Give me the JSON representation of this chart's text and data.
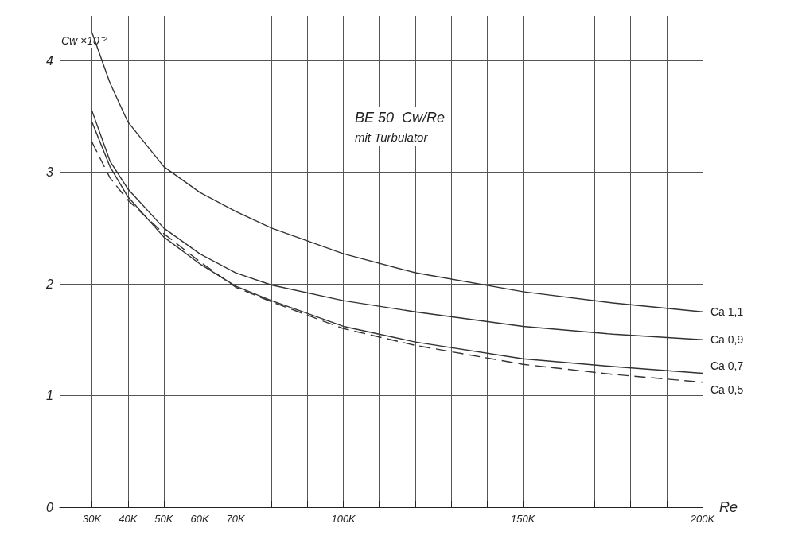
{
  "chart_data": {
    "type": "line",
    "title": "BE 50  Cw/Re",
    "subtitle": "mit Turbulator",
    "xlabel": "Re",
    "ylabel": "Cw ×10⁻²",
    "xlim": [
      21000,
      200000
    ],
    "xticks": [
      {
        "value": 30000,
        "label": "30K"
      },
      {
        "value": 40000,
        "label": "40K"
      },
      {
        "value": 50000,
        "label": "50K"
      },
      {
        "value": 60000,
        "label": "60K"
      },
      {
        "value": 70000,
        "label": "70K"
      },
      {
        "value": 80000,
        "label": null
      },
      {
        "value": 90000,
        "label": null
      },
      {
        "value": 100000,
        "label": "100K"
      },
      {
        "value": 110000,
        "label": null
      },
      {
        "value": 120000,
        "label": null
      },
      {
        "value": 130000,
        "label": null
      },
      {
        "value": 140000,
        "label": null
      },
      {
        "value": 150000,
        "label": "150K"
      },
      {
        "value": 160000,
        "label": null
      },
      {
        "value": 170000,
        "label": null
      },
      {
        "value": 180000,
        "label": null
      },
      {
        "value": 190000,
        "label": null
      },
      {
        "value": 200000,
        "label": "200K"
      }
    ],
    "ylim": [
      0,
      4.4
    ],
    "yticks": [
      0,
      1,
      2,
      3,
      4
    ],
    "grid": true,
    "legend": false,
    "marker": "none",
    "x": [
      30000,
      35000,
      40000,
      50000,
      60000,
      70000,
      80000,
      100000,
      120000,
      150000,
      175000,
      200000
    ],
    "series": [
      {
        "name": "Ca 1,1",
        "color": "#333333",
        "line_style": "solid",
        "values": [
          4.25,
          3.8,
          3.45,
          3.05,
          2.82,
          2.65,
          2.5,
          2.27,
          2.1,
          1.93,
          1.83,
          1.75
        ]
      },
      {
        "name": "Ca 0,9",
        "color": "#333333",
        "line_style": "solid",
        "values": [
          3.55,
          3.1,
          2.85,
          2.5,
          2.27,
          2.1,
          1.99,
          1.85,
          1.75,
          1.62,
          1.55,
          1.5
        ]
      },
      {
        "name": "Ca 0,7",
        "color": "#333333",
        "line_style": "solid",
        "values": [
          3.45,
          3.05,
          2.78,
          2.42,
          2.18,
          1.98,
          1.85,
          1.62,
          1.48,
          1.33,
          1.26,
          1.2
        ]
      },
      {
        "name": "Ca 0,5",
        "color": "#333333",
        "line_style": "dashed",
        "values": [
          3.27,
          2.95,
          2.75,
          2.45,
          2.2,
          1.97,
          1.84,
          1.6,
          1.45,
          1.28,
          1.19,
          1.12
        ]
      }
    ]
  }
}
